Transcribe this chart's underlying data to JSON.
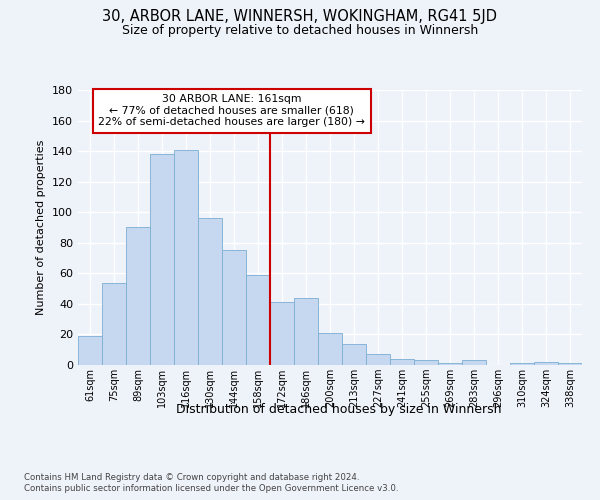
{
  "title1": "30, ARBOR LANE, WINNERSH, WOKINGHAM, RG41 5JD",
  "title2": "Size of property relative to detached houses in Winnersh",
  "xlabel": "Distribution of detached houses by size in Winnersh",
  "ylabel": "Number of detached properties",
  "categories": [
    "61sqm",
    "75sqm",
    "89sqm",
    "103sqm",
    "116sqm",
    "130sqm",
    "144sqm",
    "158sqm",
    "172sqm",
    "186sqm",
    "200sqm",
    "213sqm",
    "227sqm",
    "241sqm",
    "255sqm",
    "269sqm",
    "283sqm",
    "296sqm",
    "310sqm",
    "324sqm",
    "338sqm"
  ],
  "values": [
    19,
    54,
    90,
    138,
    141,
    96,
    75,
    59,
    41,
    44,
    21,
    14,
    7,
    4,
    3,
    1,
    3,
    0,
    1,
    2,
    1
  ],
  "bar_color": "#c5d8f0",
  "bar_edge_color": "#7bafd4",
  "vline_pos": 7.5,
  "vline_color": "#cc0000",
  "annotation_line1": "30 ARBOR LANE: 161sqm",
  "annotation_line2": "← 77% of detached houses are smaller (618)",
  "annotation_line3": "22% of semi-detached houses are larger (180) →",
  "ylim_max": 180,
  "yticks": [
    0,
    20,
    40,
    60,
    80,
    100,
    120,
    140,
    160,
    180
  ],
  "bg_color": "#eef2f9",
  "grid_color": "#ffffff",
  "footer1": "Contains HM Land Registry data © Crown copyright and database right 2024.",
  "footer2": "Contains public sector information licensed under the Open Government Licence v3.0."
}
